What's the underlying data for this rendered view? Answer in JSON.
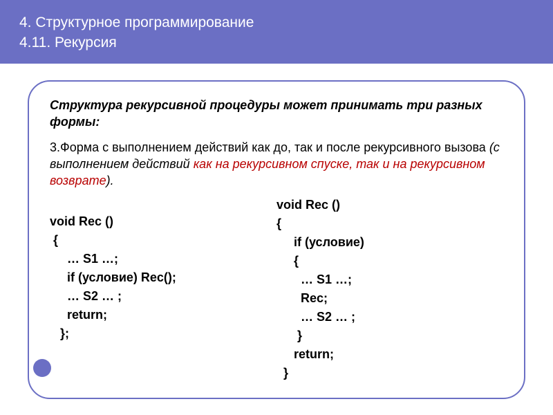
{
  "header": {
    "line1": "4. Структурное программирование",
    "line2": "4.11. Рекурсия"
  },
  "intro": "Структура рекурсивной процедуры может принимать три разных формы:",
  "form_label": "3.Форма с выполнением действий как до, так и после рекурсивного вызова ",
  "form_ital": "(с выполнением действий ",
  "form_red1": "как на рекурсивном спуске, так и на рекурсивном возврате",
  "form_close": ").",
  "code_left": {
    "l1": "void Rec ()",
    "l2": " {",
    "l3": "     … S1 …;",
    "l4": "     if (условие) Rec();",
    "l5": "     … S2 … ;",
    "l6": "     return;",
    "l7": "   };"
  },
  "code_right": {
    "l1": "void Rec ()",
    "l2": "{",
    "l3": "     if (условие)",
    "l4": "     {",
    "l5": "       … S1 …;",
    "l6": "       Rec;",
    "l7": "       … S2 … ;",
    "l8": "      }",
    "l9": "     return;",
    "l10": "  }"
  },
  "colors": {
    "accent": "#6b6fc4",
    "text": "#000000",
    "red": "#b80000",
    "bg": "#ffffff",
    "header_text": "#ffffff"
  }
}
